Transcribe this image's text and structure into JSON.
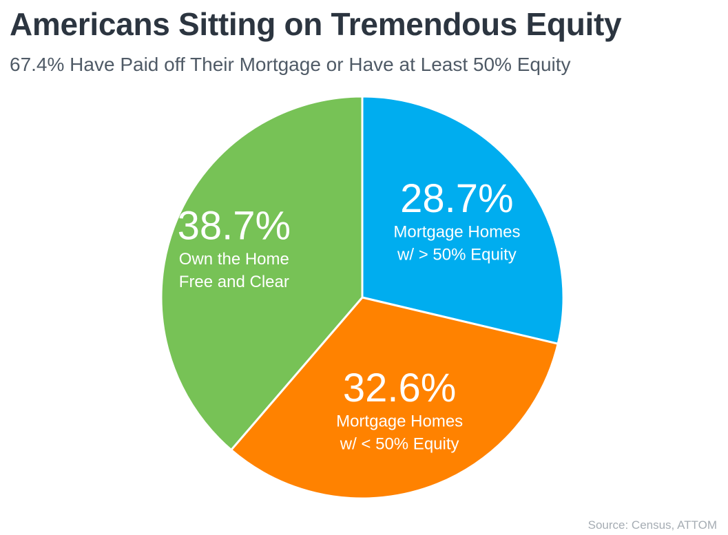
{
  "header": {
    "title": "Americans Sitting on Tremendous Equity",
    "subtitle": "67.4% Have Paid off Their Mortgage or Have at Least 50% Equity"
  },
  "footer": {
    "source": "Source: Census, ATTOM"
  },
  "chart_data": {
    "type": "pie",
    "title": "Americans Sitting on Tremendous Equity",
    "subtitle": "67.4% Have Paid off Their Mortgage or Have at Least 50% Equity",
    "start_angle_deg": 0,
    "direction": "clockwise",
    "slices": [
      {
        "value": 28.7,
        "value_label": "28.7%",
        "label_lines": [
          "Mortgage Homes",
          "w/ > 50% Equity"
        ],
        "color": "#00adef"
      },
      {
        "value": 32.6,
        "value_label": "32.6%",
        "label_lines": [
          "Mortgage Homes",
          "w/ < 50% Equity"
        ],
        "color": "#ff8200"
      },
      {
        "value": 38.7,
        "value_label": "38.7%",
        "label_lines": [
          "Own the Home",
          "Free and Clear"
        ],
        "color": "#77c256"
      }
    ],
    "label_color": "#ffffff",
    "border_color": "#ffffff"
  }
}
